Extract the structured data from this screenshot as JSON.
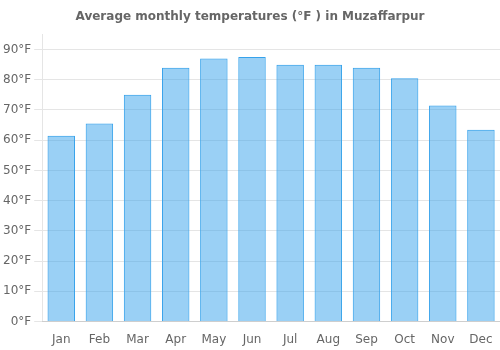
{
  "chart_data": {
    "type": "bar",
    "title": "Average monthly temperatures (°F ) in Muzaffarpur",
    "categories": [
      "Jan",
      "Feb",
      "Mar",
      "Apr",
      "May",
      "Jun",
      "Jul",
      "Aug",
      "Sep",
      "Oct",
      "Nov",
      "Dec"
    ],
    "values": [
      61.5,
      65.5,
      75.0,
      84.0,
      87.0,
      87.5,
      85.0,
      85.0,
      84.0,
      80.5,
      71.5,
      63.5
    ],
    "ylim": [
      0,
      95
    ],
    "yticks": [
      {
        "value": 0,
        "label": "0°F"
      },
      {
        "value": 10,
        "label": "10°F"
      },
      {
        "value": 20,
        "label": "20°F"
      },
      {
        "value": 30,
        "label": "30°F"
      },
      {
        "value": 40,
        "label": "40°F"
      },
      {
        "value": 50,
        "label": "50°F"
      },
      {
        "value": 60,
        "label": "60°F"
      },
      {
        "value": 70,
        "label": "70°F"
      },
      {
        "value": 80,
        "label": "80°F"
      },
      {
        "value": 90,
        "label": "90°F"
      }
    ],
    "grid": true
  }
}
